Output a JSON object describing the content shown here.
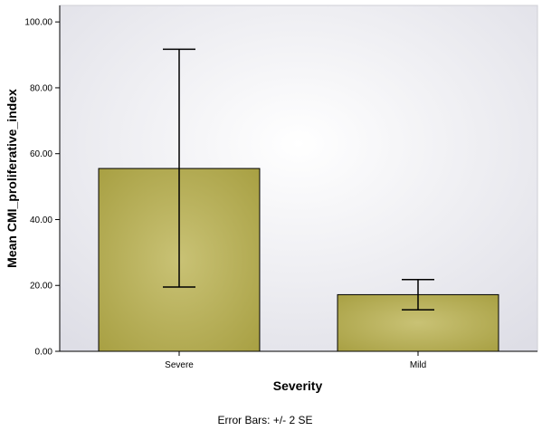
{
  "chart_data": {
    "type": "bar",
    "categories": [
      "Severe",
      "Mild"
    ],
    "values": [
      55.5,
      17.2
    ],
    "error_bars": [
      {
        "low": 19.5,
        "high": 91.7
      },
      {
        "low": 12.6,
        "high": 21.8
      }
    ],
    "xlabel": "Severity",
    "ylabel": "Mean CMI_proliferative_index",
    "ylim": [
      0,
      105
    ],
    "yticks": [
      0,
      20,
      40,
      60,
      80,
      100
    ],
    "ytick_labels": [
      "0.00",
      "20.00",
      "40.00",
      "60.00",
      "80.00",
      "100.00"
    ],
    "footnote": "Error Bars: +/- 2 SE",
    "grid": false,
    "legend": "none",
    "colors": {
      "bar_fill_center": "#c9c275",
      "bar_fill_edge": "#a8a043",
      "bar_stroke": "#000000",
      "plot_bg_center": "#ffffff",
      "plot_bg_edge": "#dedee6",
      "error_bar": "#000000"
    }
  }
}
